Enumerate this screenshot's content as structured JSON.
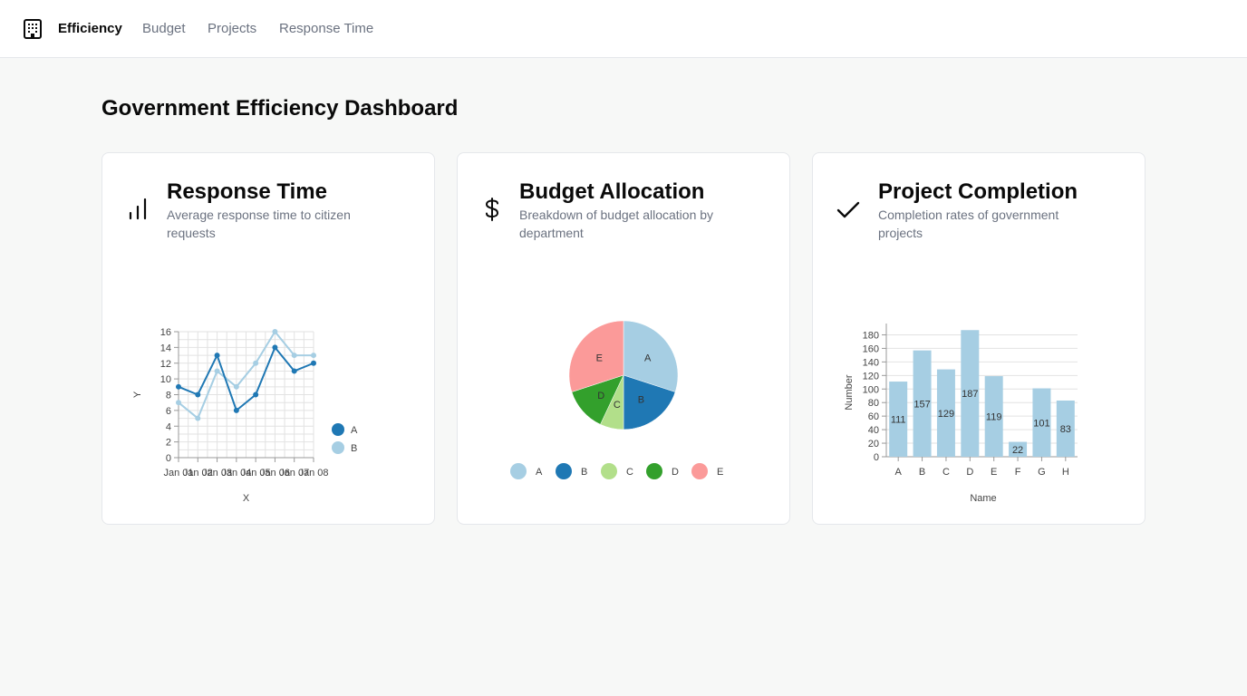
{
  "nav": {
    "items": [
      {
        "label": "Efficiency",
        "active": true
      },
      {
        "label": "Budget",
        "active": false
      },
      {
        "label": "Projects",
        "active": false
      },
      {
        "label": "Response Time",
        "active": false
      }
    ]
  },
  "page": {
    "title": "Government Efficiency Dashboard"
  },
  "cards": {
    "response": {
      "title": "Response Time",
      "subtitle": "Average response time to citizen requests",
      "icon": "bar-chart-icon"
    },
    "budget": {
      "title": "Budget Allocation",
      "subtitle": "Breakdown of budget allocation by department",
      "icon": "dollar-icon"
    },
    "projects": {
      "title": "Project Completion",
      "subtitle": "Completion rates of government projects",
      "icon": "check-icon"
    }
  },
  "chart_data": [
    {
      "type": "line",
      "x": [
        "Jan 01",
        "Jan 02",
        "Jan 03",
        "Jan 04",
        "Jan 05",
        "Jan 06",
        "Jan 07",
        "Jan 08"
      ],
      "series": [
        {
          "name": "A",
          "values": [
            9,
            8,
            13,
            6,
            8,
            14,
            11,
            12
          ],
          "color": "#1f78b4"
        },
        {
          "name": "B",
          "values": [
            7,
            5,
            11,
            9,
            12,
            16,
            13,
            13
          ],
          "color": "#a6cee3"
        }
      ],
      "xlabel": "X",
      "ylabel": "Y",
      "ylim": [
        0,
        16
      ],
      "yticks": [
        0,
        2,
        4,
        6,
        8,
        10,
        12,
        14,
        16
      ],
      "grid": true,
      "legend": "right"
    },
    {
      "type": "pie",
      "categories": [
        "A",
        "B",
        "C",
        "D",
        "E"
      ],
      "values": [
        30,
        20,
        7,
        13,
        30
      ],
      "colors": [
        "#a6cee3",
        "#1f78b4",
        "#b2df8a",
        "#33a02c",
        "#fb9a99"
      ],
      "legend": "bottom"
    },
    {
      "type": "bar",
      "categories": [
        "A",
        "B",
        "C",
        "D",
        "E",
        "F",
        "G",
        "H"
      ],
      "values": [
        111,
        157,
        129,
        187,
        119,
        22,
        101,
        83
      ],
      "color": "#a6cee3",
      "xlabel": "Name",
      "ylabel": "Number",
      "ylim": [
        0,
        190
      ],
      "yticks": [
        0,
        20,
        40,
        60,
        80,
        100,
        120,
        140,
        160,
        180
      ],
      "grid": true
    }
  ]
}
